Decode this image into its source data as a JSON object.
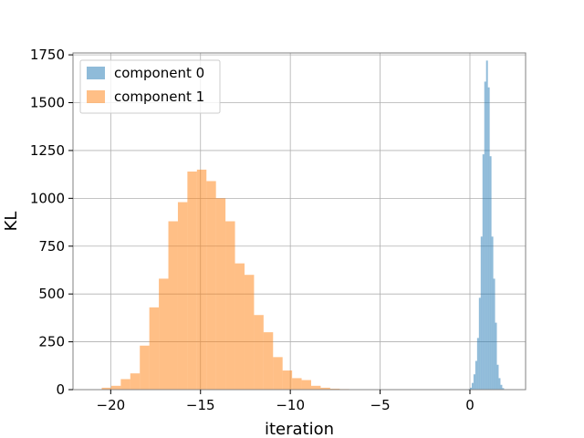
{
  "chart_data": {
    "type": "bar",
    "title": "",
    "xlabel": "iteration",
    "ylabel": "KL",
    "xlim": [
      -22.1,
      3.1
    ],
    "ylim": [
      0,
      1760
    ],
    "xticks": [
      -20,
      -15,
      -10,
      -5,
      0
    ],
    "xtick_labels": [
      "−20",
      "−15",
      "−10",
      "−5",
      "0"
    ],
    "yticks": [
      0,
      250,
      500,
      750,
      1000,
      1250,
      1500,
      1750
    ],
    "ytick_labels": [
      "0",
      "250",
      "500",
      "750",
      "1000",
      "1250",
      "1500",
      "1750"
    ],
    "grid": true,
    "legend_position": "top-left",
    "series": [
      {
        "name": "component 0",
        "color": "#1f77b4",
        "opacity": 0.5,
        "bin_edges": [
          -0.1,
          0.0,
          0.1,
          0.2,
          0.3,
          0.4,
          0.5,
          0.6,
          0.7,
          0.8,
          0.9,
          1.0,
          1.1,
          1.2,
          1.3,
          1.4,
          1.5,
          1.6,
          1.7,
          1.8,
          1.9,
          2.0
        ],
        "counts": [
          3,
          10,
          35,
          80,
          150,
          270,
          480,
          800,
          1230,
          1610,
          1720,
          1580,
          1220,
          800,
          580,
          350,
          130,
          60,
          25,
          8,
          2
        ]
      },
      {
        "name": "component 1",
        "color": "#ff7f0e",
        "opacity": 0.5,
        "bin_edges": [
          -20.5,
          -19.97,
          -19.44,
          -18.91,
          -18.38,
          -17.85,
          -17.32,
          -16.79,
          -16.26,
          -15.73,
          -15.2,
          -14.67,
          -14.14,
          -13.61,
          -13.08,
          -12.55,
          -12.02,
          -11.49,
          -10.96,
          -10.43,
          -9.9,
          -9.37,
          -8.84,
          -8.31,
          -7.78,
          -7.25,
          -6.72,
          -6.19
        ],
        "counts": [
          10,
          20,
          55,
          85,
          230,
          430,
          580,
          880,
          980,
          1140,
          1150,
          1090,
          1000,
          880,
          660,
          600,
          390,
          300,
          170,
          100,
          60,
          50,
          20,
          10,
          5,
          3,
          1
        ]
      }
    ]
  }
}
